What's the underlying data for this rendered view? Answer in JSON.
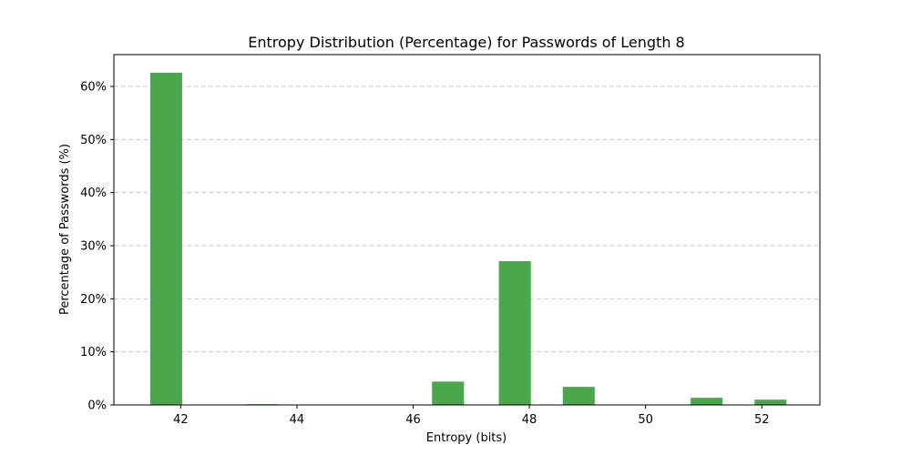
{
  "chart_data": {
    "type": "bar",
    "title": "Entropy Distribution (Percentage) for Passwords of Length 8",
    "xlabel": "Entropy (bits)",
    "ylabel": "Percentage of Passwords (%)",
    "xlim": [
      40.85,
      53.0
    ],
    "ylim": [
      0,
      66
    ],
    "xticks": [
      42,
      44,
      46,
      48,
      50,
      52
    ],
    "xtick_labels": [
      "42",
      "44",
      "46",
      "48",
      "50",
      "52"
    ],
    "yticks": [
      0,
      10,
      20,
      30,
      40,
      50,
      60
    ],
    "ytick_labels": [
      "0%",
      "10%",
      "20%",
      "30%",
      "40%",
      "50%",
      "60%"
    ],
    "bar_color": "#4ca64c",
    "bar_width": 0.55,
    "grid": {
      "y": true,
      "x": false,
      "style": "dashed"
    },
    "x": [
      41.75,
      43.4,
      46.6,
      47.75,
      48.85,
      51.05,
      52.15
    ],
    "values": [
      62.6,
      0.15,
      4.4,
      27.1,
      3.4,
      1.35,
      1.0
    ]
  }
}
